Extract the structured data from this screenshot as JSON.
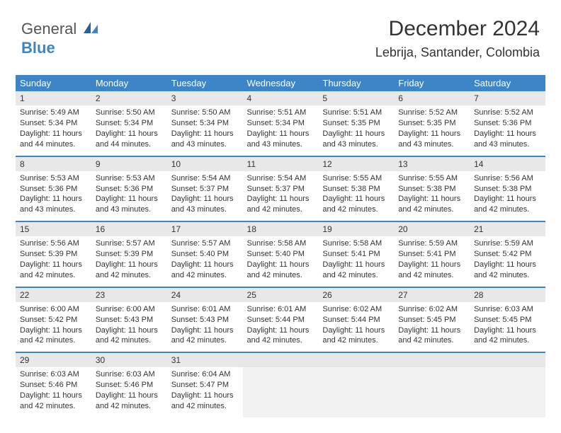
{
  "logo": {
    "text1": "General",
    "text2": "Blue"
  },
  "header": {
    "month": "December 2024",
    "location": "Lebrija, Santander, Colombia"
  },
  "colors": {
    "header_bg": "#3d85c6",
    "header_fg": "#ffffff",
    "daynum_bg": "#e8e8e8",
    "empty_bg": "#f2f2f2",
    "row_divider": "#3d85c6",
    "text": "#333333",
    "logo_blue": "#3d85c6"
  },
  "typography": {
    "title_fontsize": 30,
    "location_fontsize": 18,
    "weekday_fontsize": 13,
    "daynum_fontsize": 12,
    "body_fontsize": 11
  },
  "weekdays": [
    "Sunday",
    "Monday",
    "Tuesday",
    "Wednesday",
    "Thursday",
    "Friday",
    "Saturday"
  ],
  "weeks": [
    [
      {
        "num": "1",
        "sunrise": "Sunrise: 5:49 AM",
        "sunset": "Sunset: 5:34 PM",
        "daylight": "Daylight: 11 hours and 44 minutes."
      },
      {
        "num": "2",
        "sunrise": "Sunrise: 5:50 AM",
        "sunset": "Sunset: 5:34 PM",
        "daylight": "Daylight: 11 hours and 44 minutes."
      },
      {
        "num": "3",
        "sunrise": "Sunrise: 5:50 AM",
        "sunset": "Sunset: 5:34 PM",
        "daylight": "Daylight: 11 hours and 43 minutes."
      },
      {
        "num": "4",
        "sunrise": "Sunrise: 5:51 AM",
        "sunset": "Sunset: 5:34 PM",
        "daylight": "Daylight: 11 hours and 43 minutes."
      },
      {
        "num": "5",
        "sunrise": "Sunrise: 5:51 AM",
        "sunset": "Sunset: 5:35 PM",
        "daylight": "Daylight: 11 hours and 43 minutes."
      },
      {
        "num": "6",
        "sunrise": "Sunrise: 5:52 AM",
        "sunset": "Sunset: 5:35 PM",
        "daylight": "Daylight: 11 hours and 43 minutes."
      },
      {
        "num": "7",
        "sunrise": "Sunrise: 5:52 AM",
        "sunset": "Sunset: 5:36 PM",
        "daylight": "Daylight: 11 hours and 43 minutes."
      }
    ],
    [
      {
        "num": "8",
        "sunrise": "Sunrise: 5:53 AM",
        "sunset": "Sunset: 5:36 PM",
        "daylight": "Daylight: 11 hours and 43 minutes."
      },
      {
        "num": "9",
        "sunrise": "Sunrise: 5:53 AM",
        "sunset": "Sunset: 5:36 PM",
        "daylight": "Daylight: 11 hours and 43 minutes."
      },
      {
        "num": "10",
        "sunrise": "Sunrise: 5:54 AM",
        "sunset": "Sunset: 5:37 PM",
        "daylight": "Daylight: 11 hours and 43 minutes."
      },
      {
        "num": "11",
        "sunrise": "Sunrise: 5:54 AM",
        "sunset": "Sunset: 5:37 PM",
        "daylight": "Daylight: 11 hours and 42 minutes."
      },
      {
        "num": "12",
        "sunrise": "Sunrise: 5:55 AM",
        "sunset": "Sunset: 5:38 PM",
        "daylight": "Daylight: 11 hours and 42 minutes."
      },
      {
        "num": "13",
        "sunrise": "Sunrise: 5:55 AM",
        "sunset": "Sunset: 5:38 PM",
        "daylight": "Daylight: 11 hours and 42 minutes."
      },
      {
        "num": "14",
        "sunrise": "Sunrise: 5:56 AM",
        "sunset": "Sunset: 5:38 PM",
        "daylight": "Daylight: 11 hours and 42 minutes."
      }
    ],
    [
      {
        "num": "15",
        "sunrise": "Sunrise: 5:56 AM",
        "sunset": "Sunset: 5:39 PM",
        "daylight": "Daylight: 11 hours and 42 minutes."
      },
      {
        "num": "16",
        "sunrise": "Sunrise: 5:57 AM",
        "sunset": "Sunset: 5:39 PM",
        "daylight": "Daylight: 11 hours and 42 minutes."
      },
      {
        "num": "17",
        "sunrise": "Sunrise: 5:57 AM",
        "sunset": "Sunset: 5:40 PM",
        "daylight": "Daylight: 11 hours and 42 minutes."
      },
      {
        "num": "18",
        "sunrise": "Sunrise: 5:58 AM",
        "sunset": "Sunset: 5:40 PM",
        "daylight": "Daylight: 11 hours and 42 minutes."
      },
      {
        "num": "19",
        "sunrise": "Sunrise: 5:58 AM",
        "sunset": "Sunset: 5:41 PM",
        "daylight": "Daylight: 11 hours and 42 minutes."
      },
      {
        "num": "20",
        "sunrise": "Sunrise: 5:59 AM",
        "sunset": "Sunset: 5:41 PM",
        "daylight": "Daylight: 11 hours and 42 minutes."
      },
      {
        "num": "21",
        "sunrise": "Sunrise: 5:59 AM",
        "sunset": "Sunset: 5:42 PM",
        "daylight": "Daylight: 11 hours and 42 minutes."
      }
    ],
    [
      {
        "num": "22",
        "sunrise": "Sunrise: 6:00 AM",
        "sunset": "Sunset: 5:42 PM",
        "daylight": "Daylight: 11 hours and 42 minutes."
      },
      {
        "num": "23",
        "sunrise": "Sunrise: 6:00 AM",
        "sunset": "Sunset: 5:43 PM",
        "daylight": "Daylight: 11 hours and 42 minutes."
      },
      {
        "num": "24",
        "sunrise": "Sunrise: 6:01 AM",
        "sunset": "Sunset: 5:43 PM",
        "daylight": "Daylight: 11 hours and 42 minutes."
      },
      {
        "num": "25",
        "sunrise": "Sunrise: 6:01 AM",
        "sunset": "Sunset: 5:44 PM",
        "daylight": "Daylight: 11 hours and 42 minutes."
      },
      {
        "num": "26",
        "sunrise": "Sunrise: 6:02 AM",
        "sunset": "Sunset: 5:44 PM",
        "daylight": "Daylight: 11 hours and 42 minutes."
      },
      {
        "num": "27",
        "sunrise": "Sunrise: 6:02 AM",
        "sunset": "Sunset: 5:45 PM",
        "daylight": "Daylight: 11 hours and 42 minutes."
      },
      {
        "num": "28",
        "sunrise": "Sunrise: 6:03 AM",
        "sunset": "Sunset: 5:45 PM",
        "daylight": "Daylight: 11 hours and 42 minutes."
      }
    ],
    [
      {
        "num": "29",
        "sunrise": "Sunrise: 6:03 AM",
        "sunset": "Sunset: 5:46 PM",
        "daylight": "Daylight: 11 hours and 42 minutes."
      },
      {
        "num": "30",
        "sunrise": "Sunrise: 6:03 AM",
        "sunset": "Sunset: 5:46 PM",
        "daylight": "Daylight: 11 hours and 42 minutes."
      },
      {
        "num": "31",
        "sunrise": "Sunrise: 6:04 AM",
        "sunset": "Sunset: 5:47 PM",
        "daylight": "Daylight: 11 hours and 42 minutes."
      },
      null,
      null,
      null,
      null
    ]
  ]
}
